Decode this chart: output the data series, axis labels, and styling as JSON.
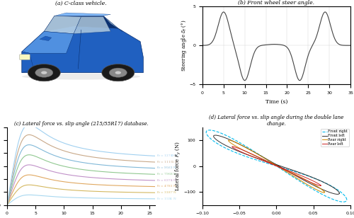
{
  "subplot_a_caption": "(a) C-class vehicle.",
  "subplot_b_caption": "(b) Front wheel steer angle.",
  "subplot_c_caption": "(c) Lateral force vs. slip angle (215/55R17) database.",
  "subplot_d_caption": "(d) Lateral force vs. slip angle during the double lane\nchange.",
  "fz_values": [
    1594,
    3187,
    4781,
    6374,
    7968,
    9561,
    11155,
    12749
  ],
  "fz_colors_low_to_high": [
    "#aeddf5",
    "#e8c87a",
    "#d4a8d8",
    "#f0c090",
    "#b8dbb8",
    "#90c8e8",
    "#c89860",
    "#90d0f8"
  ],
  "background_color": "#ffffff",
  "grid_color": "#d0d0d0",
  "dlc_legend": [
    "Front right",
    "Front left",
    "Rear right",
    "Rear left"
  ],
  "dlc_colors": [
    "#00ccff",
    "#555555",
    "#cc8800",
    "#cc2222"
  ],
  "dlc_styles": [
    "--",
    "-",
    "-",
    "-"
  ]
}
